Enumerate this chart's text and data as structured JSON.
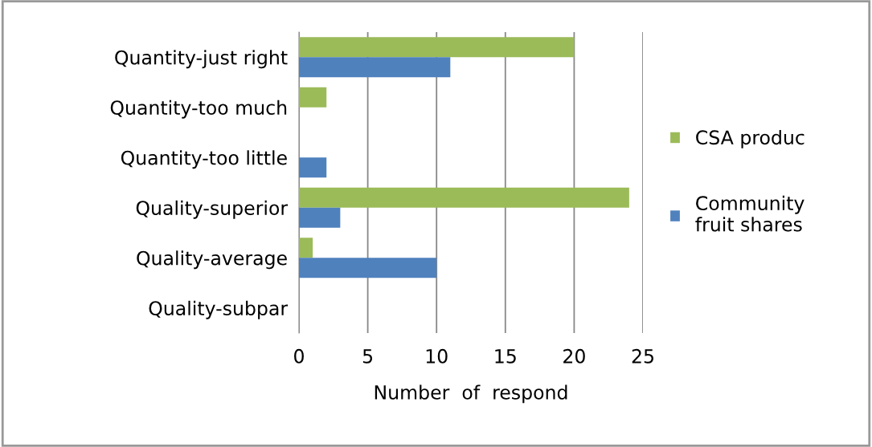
{
  "chart_data": {
    "type": "bar",
    "orientation": "horizontal",
    "categories": [
      "Quantity-just right",
      "Quantity-too much",
      "Quantity-too little",
      "Quality-superior",
      "Quality-average",
      "Quality-subpar"
    ],
    "series": [
      {
        "name": "CSA produc",
        "color": "#9bbb59",
        "values": [
          20,
          2,
          0,
          24,
          1,
          0
        ]
      },
      {
        "name": "Community\nfruit shares",
        "color": "#4f81bd",
        "values": [
          11,
          0,
          2,
          3,
          10,
          0
        ]
      }
    ],
    "xlim": [
      0,
      25
    ],
    "xticks": [
      0,
      5,
      10,
      15,
      20,
      25
    ],
    "xlabel": "Number  of  respond",
    "grid": "x",
    "legend": "right"
  }
}
